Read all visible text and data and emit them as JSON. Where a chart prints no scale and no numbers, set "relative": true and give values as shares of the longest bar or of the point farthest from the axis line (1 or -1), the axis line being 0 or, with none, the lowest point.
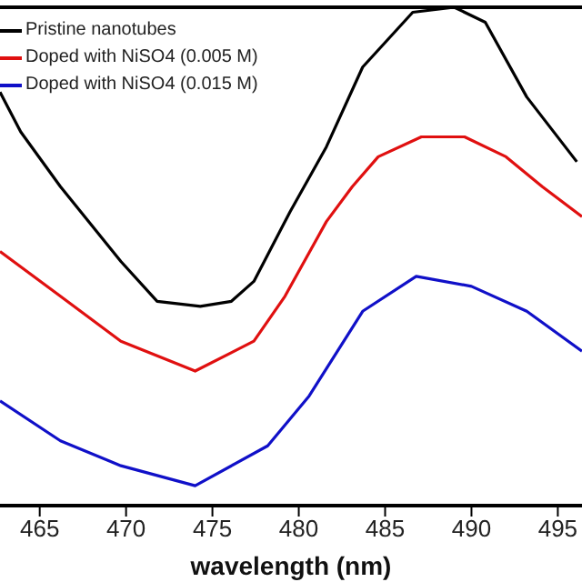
{
  "chart_data": {
    "type": "line",
    "xlabel": "wavelength (nm)",
    "relative": true,
    "xlim": [
      462.7,
      496.4
    ],
    "xticks": [
      465,
      470,
      475,
      480,
      485,
      490,
      495
    ],
    "legend": "top left",
    "grid": false,
    "marker": "none",
    "line_style": "solid",
    "series": [
      {
        "name": "Pristine nanotubes",
        "color": "#000000",
        "x": [
          462.7,
          463.9,
          466.2,
          469.7,
          471.8,
          474.3,
          476.1,
          477.4,
          479.5,
          481.6,
          483.7,
          486.6,
          489.0,
          490.8,
          493.2,
          496.1
        ],
        "values": [
          0.83,
          0.75,
          0.64,
          0.49,
          0.41,
          0.4,
          0.41,
          0.45,
          0.59,
          0.72,
          0.88,
          0.99,
          1,
          0.97,
          0.82,
          0.69
        ]
      },
      {
        "name": "Doped with NiSO4 (0.005 M)",
        "color": "#e01010",
        "x": [
          462.7,
          466.2,
          469.7,
          474.0,
          477.4,
          479.2,
          481.6,
          483.1,
          484.6,
          487.1,
          489.6,
          492.0,
          494.1,
          496.4
        ],
        "values": [
          0.51,
          0.42,
          0.33,
          0.27,
          0.33,
          0.42,
          0.57,
          0.64,
          0.7,
          0.74,
          0.74,
          0.7,
          0.64,
          0.58
        ]
      },
      {
        "name": "Doped with NiSO4 (0.015 M)",
        "color": "#1010c8",
        "x": [
          462.7,
          466.2,
          469.7,
          474.0,
          478.2,
          480.6,
          483.7,
          486.8,
          490.0,
          493.2,
          496.4
        ],
        "values": [
          0.21,
          0.13,
          0.08,
          0.04,
          0.12,
          0.22,
          0.39,
          0.46,
          0.44,
          0.39,
          0.31
        ]
      }
    ]
  }
}
